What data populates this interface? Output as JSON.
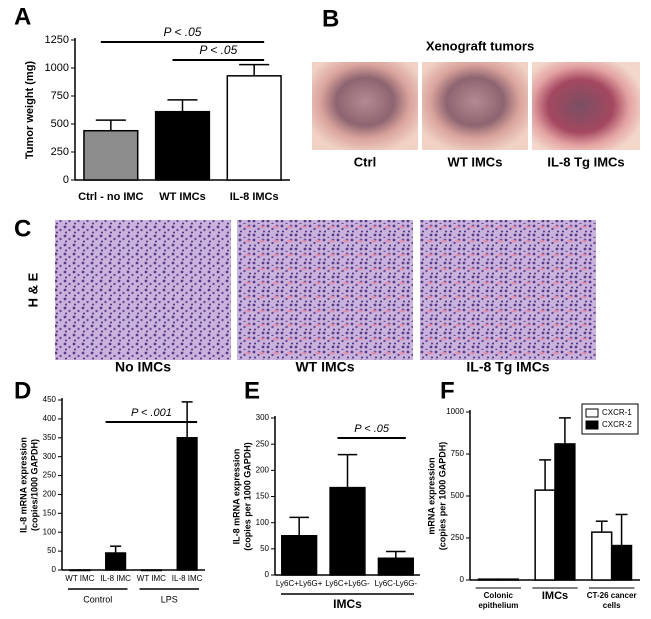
{
  "chart_data": [
    {
      "type": "bar",
      "panel": "A",
      "ylabel": [
        "Tumor weight (mg)"
      ],
      "categories": [
        "Ctrl - no IMC",
        "WT IMCs",
        "IL-8 IMCs"
      ],
      "values": [
        440,
        610,
        930
      ],
      "errors": [
        95,
        105,
        100
      ],
      "colors": [
        "#8c8c8c",
        "#000000",
        "#ffffff"
      ],
      "ylim": [
        0,
        1250
      ],
      "yticks": [
        0,
        250,
        500,
        750,
        1000,
        1250
      ],
      "brackets": [
        {
          "text": "P < .05",
          "from": 0,
          "to": 2
        },
        {
          "text": "P < .05",
          "from": 1,
          "to": 2
        }
      ]
    },
    {
      "type": "bar",
      "panel": "D",
      "ylabel": [
        "IL-8 mRNA expression",
        "(copies/1000 GAPDH)"
      ],
      "categories": [
        "WT IMC",
        "IL-8 IMC",
        "WT IMC",
        "IL-8 IMC"
      ],
      "values": [
        0,
        45,
        0,
        350
      ],
      "errors": [
        null,
        18,
        null,
        95
      ],
      "color": "#000000",
      "groups": [
        "Control",
        "LPS"
      ],
      "ylim": [
        0,
        450
      ],
      "yticks": [
        0,
        50,
        100,
        150,
        200,
        250,
        300,
        350,
        400,
        450
      ],
      "brackets": [
        {
          "text": "P < .001",
          "from": 1,
          "to": 3
        }
      ]
    },
    {
      "type": "bar",
      "panel": "E",
      "ylabel": [
        "IL-8 mRNA expression",
        "(copies per 1000 GAPDH)"
      ],
      "categories": [
        "Ly6C+Ly6G+",
        "Ly6C+Ly6G-",
        "Ly6C-Ly6G-"
      ],
      "values": [
        75,
        167,
        32
      ],
      "errors": [
        35,
        63,
        13
      ],
      "color": "#000000",
      "groups": [
        "IMCs"
      ],
      "ylim": [
        0,
        300
      ],
      "yticks": [
        0,
        50,
        100,
        150,
        200,
        250,
        300
      ],
      "brackets": [
        {
          "text": "P < .05",
          "from": 1,
          "to": 2
        }
      ]
    },
    {
      "type": "grouped-bar",
      "panel": "F",
      "ylabel": [
        "mRNA expression",
        "(copies per 1000 GAPDH)"
      ],
      "categories": [
        [
          "Colonic",
          "epithelium"
        ],
        [
          "IMCs"
        ],
        [
          "CT-26 cancer",
          "cells"
        ]
      ],
      "series": [
        {
          "name": "CXCR-1",
          "color": "#ffffff",
          "values": [
            5,
            535,
            285
          ],
          "errors": [
            null,
            180,
            65
          ]
        },
        {
          "name": "CXCR-2",
          "color": "#000000",
          "values": [
            5,
            810,
            205
          ],
          "errors": [
            null,
            155,
            185
          ]
        }
      ],
      "ylim": [
        0,
        1000
      ],
      "yticks": [
        0,
        250,
        500,
        750,
        1000
      ],
      "legend": "top-right"
    }
  ],
  "panel_b": {
    "letter": "B",
    "title": "Xenograft tumors",
    "labels": [
      "Ctrl",
      "WT IMCs",
      "IL-8 Tg IMCs"
    ]
  },
  "panel_c": {
    "letter": "C",
    "side_label": "H & E",
    "labels": [
      "No IMCs",
      "WT IMCs",
      "IL-8 Tg IMCs"
    ]
  }
}
